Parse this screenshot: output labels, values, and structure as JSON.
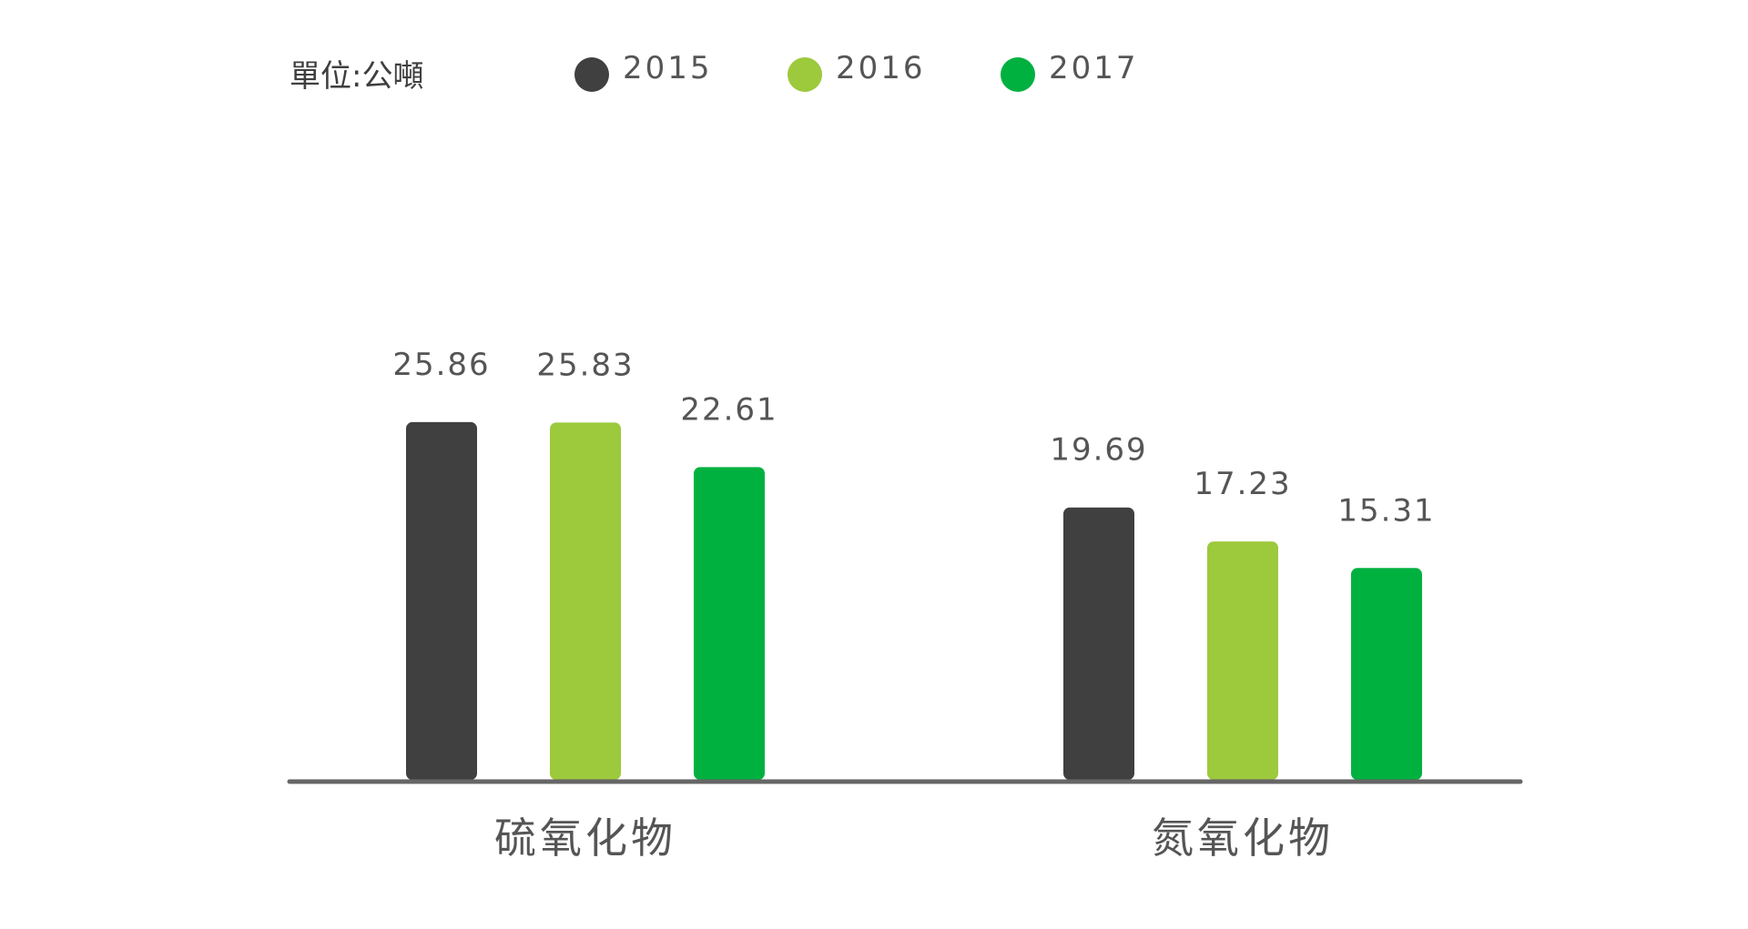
{
  "chart_data": {
    "type": "bar",
    "unit_label": "單位:公噸",
    "categories": [
      "硫氧化物",
      "氮氧化物"
    ],
    "series": [
      {
        "name": "2015",
        "values": [
          25.86,
          19.69
        ]
      },
      {
        "name": "2016",
        "values": [
          25.83,
          17.23
        ]
      },
      {
        "name": "2017",
        "values": [
          22.61,
          15.31
        ]
      }
    ],
    "value_labels": [
      [
        "25.86",
        "19.69"
      ],
      [
        "25.83",
        "17.23"
      ],
      [
        "22.61",
        "15.31"
      ]
    ],
    "legend_position": "top",
    "grid": false,
    "colors": {
      "2015": "#404040",
      "2016": "#9dc93c",
      "2017": "#00b140",
      "axis": "#666666",
      "text": "#555555"
    }
  }
}
